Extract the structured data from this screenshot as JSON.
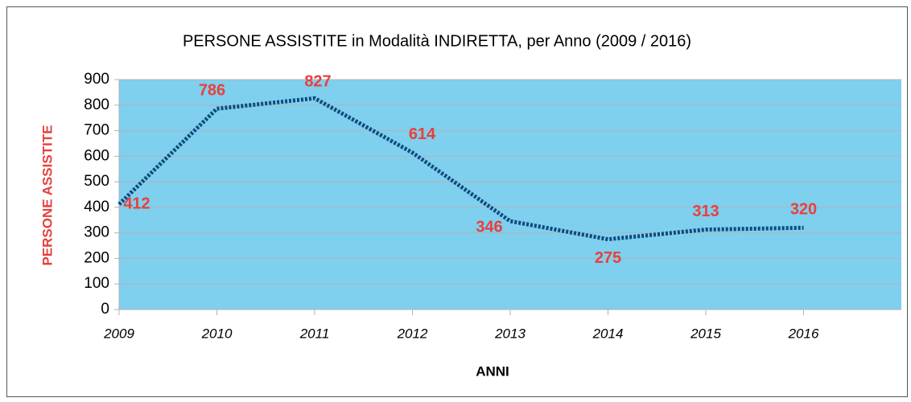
{
  "chart_data": {
    "type": "line",
    "title": "PERSONE ASSISTITE in Modalità INDIRETTA, per Anno (2009 / 2016)",
    "x_label": "ANNI",
    "y_label": "PERSONE ASSISTITE",
    "x": [
      2009,
      2010,
      2011,
      2012,
      2013,
      2014,
      2015,
      2016
    ],
    "series": [
      {
        "name": "PERSONE ASSISTITE",
        "color": "#0e4a7e",
        "values": [
          412,
          786,
          827,
          614,
          346,
          275,
          313,
          320
        ]
      }
    ],
    "xlim": [
      2009,
      2017
    ],
    "xticks": [
      2009,
      2010,
      2011,
      2012,
      2013,
      2014,
      2015,
      2016
    ],
    "ylim": [
      0,
      900
    ],
    "yticks": [
      0,
      100,
      200,
      300,
      400,
      500,
      600,
      700,
      800,
      900
    ],
    "grid": true,
    "plot_background": "#7fcfee"
  }
}
